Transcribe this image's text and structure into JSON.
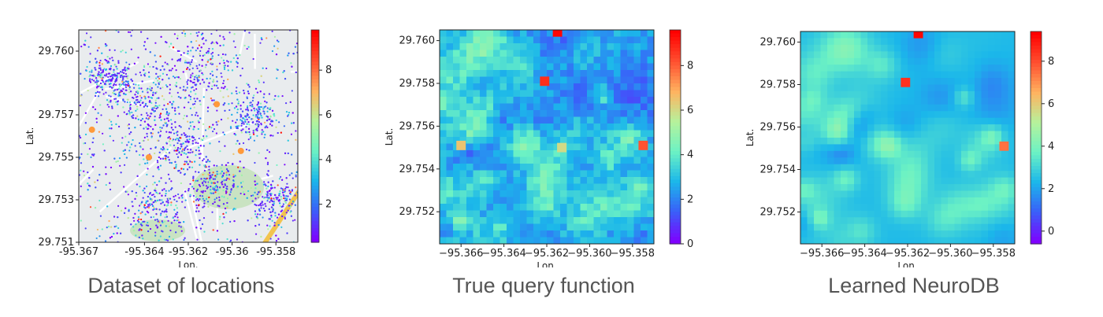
{
  "colors": {
    "colormap": [
      "#7f00ff",
      "#3a5ff9",
      "#1bb7ea",
      "#6cf2c4",
      "#b6f29c",
      "#ffb360",
      "#ff5030",
      "#ff0000"
    ],
    "map_background": "#e9ecee",
    "park": "#c9e3c2",
    "road": "#f2c44e",
    "marker": "#ff9a3a"
  },
  "chart_data": [
    {
      "type": "scatter",
      "caption": "Dataset of locations",
      "xlabel": "Lon.",
      "ylabel": "Lat.",
      "xlim": [
        -95.367,
        -95.357
      ],
      "ylim": [
        29.751,
        29.761
      ],
      "xticks": [
        -95.367,
        -95.364,
        -95.362,
        -95.36,
        -95.358
      ],
      "xtick_labels": [
        "-95.367",
        "-95.364",
        "-95.362",
        "-95.36",
        "-95.358"
      ],
      "yticks": [
        29.751,
        29.753,
        29.755,
        29.757,
        29.76
      ],
      "ytick_labels": [
        "29.751",
        "29.753",
        "29.755",
        "29.757",
        "29.760"
      ],
      "colorbar": {
        "min": 0.3,
        "max": 9.8,
        "ticks": [
          2,
          4,
          6,
          8
        ],
        "labels": [
          "2",
          "4",
          "6",
          "8"
        ]
      },
      "background": "map",
      "points_generated": 3200
    },
    {
      "type": "heatmap",
      "caption": "True query function",
      "xlabel": "Lon.",
      "ylabel": "Lat.",
      "xlim": [
        -95.367,
        -95.357
      ],
      "ylim": [
        29.7505,
        29.7605
      ],
      "xticks": [
        -95.366,
        -95.364,
        -95.362,
        -95.36,
        -95.358
      ],
      "xtick_labels": [
        "−95.366",
        "−95.364",
        "−95.362",
        "−95.360",
        "−95.358"
      ],
      "yticks": [
        29.752,
        29.754,
        29.756,
        29.758,
        29.76
      ],
      "ytick_labels": [
        "29.752",
        "29.754",
        "29.756",
        "29.758",
        "29.760"
      ],
      "colorbar": {
        "min": 0,
        "max": 9.6,
        "ticks": [
          0,
          2,
          4,
          6,
          8
        ],
        "labels": [
          "0",
          "2",
          "4",
          "6",
          "8"
        ]
      },
      "grid": [
        32,
        32
      ],
      "style": "blocky",
      "hotspots": [
        {
          "lon": -95.3615,
          "lat": 29.7604,
          "value": 9.5
        },
        {
          "lon": -95.3621,
          "lat": 29.7581,
          "value": 8.8
        },
        {
          "lon": -95.3575,
          "lat": 29.7551,
          "value": 8.2
        },
        {
          "lon": -95.366,
          "lat": 29.7551,
          "value": 6.5
        },
        {
          "lon": -95.3613,
          "lat": 29.755,
          "value": 6.0
        }
      ]
    },
    {
      "type": "heatmap",
      "caption": "Learned NeuroDB",
      "xlabel": "Lon.",
      "ylabel": "Lat.",
      "xlim": [
        -95.367,
        -95.357
      ],
      "ylim": [
        29.7505,
        29.7605
      ],
      "xticks": [
        -95.366,
        -95.364,
        -95.362,
        -95.36,
        -95.358
      ],
      "xtick_labels": [
        "−95.366",
        "−95.364",
        "−95.362",
        "−95.360",
        "−95.358"
      ],
      "yticks": [
        29.752,
        29.754,
        29.756,
        29.758,
        29.76
      ],
      "ytick_labels": [
        "29.752",
        "29.754",
        "29.756",
        "29.758",
        "29.760"
      ],
      "colorbar": {
        "min": -0.6,
        "max": 9.4,
        "ticks": [
          0,
          2,
          4,
          6,
          8
        ],
        "labels": [
          "0",
          "2",
          "4",
          "6",
          "8"
        ]
      },
      "grid": [
        32,
        32
      ],
      "style": "smooth",
      "hotspots": [
        {
          "lon": -95.3615,
          "lat": 29.7604,
          "value": 9.3
        },
        {
          "lon": -95.3621,
          "lat": 29.7581,
          "value": 8.5
        },
        {
          "lon": -95.3575,
          "lat": 29.7551,
          "value": 7.5
        }
      ]
    }
  ]
}
